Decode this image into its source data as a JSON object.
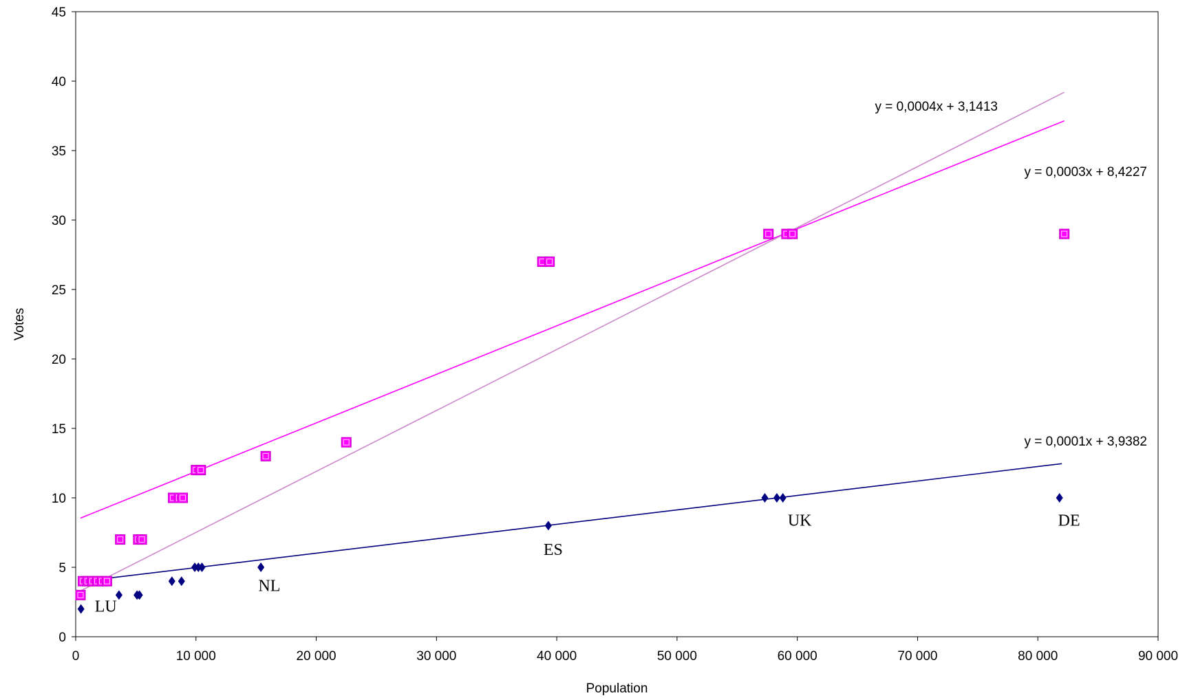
{
  "chart_data": {
    "type": "scatter",
    "xlabel": "Population",
    "ylabel": "Votes",
    "xlim": [
      0,
      90000
    ],
    "ylim": [
      0,
      45
    ],
    "x_ticks": [
      0,
      10000,
      20000,
      30000,
      40000,
      50000,
      60000,
      70000,
      80000,
      90000
    ],
    "x_tick_labels": [
      "0",
      "10 000",
      "20 000",
      "30 000",
      "40 000",
      "50 000",
      "60 000",
      "70 000",
      "80 000",
      "90 000"
    ],
    "y_ticks": [
      0,
      5,
      10,
      15,
      20,
      25,
      30,
      35,
      40,
      45
    ],
    "y_tick_labels": [
      "0",
      "5",
      "10",
      "15",
      "20",
      "25",
      "30",
      "35",
      "40",
      "45"
    ],
    "grid": false,
    "series": [
      {
        "marker": "diamond",
        "color": "#000080",
        "points": [
          {
            "x": 440,
            "y": 2
          },
          {
            "x": 700,
            "y": 4
          },
          {
            "x": 1400,
            "y": 4
          },
          {
            "x": 2000,
            "y": 4
          },
          {
            "x": 2400,
            "y": 4
          },
          {
            "x": 3600,
            "y": 3
          },
          {
            "x": 5100,
            "y": 3
          },
          {
            "x": 5300,
            "y": 3
          },
          {
            "x": 8000,
            "y": 4
          },
          {
            "x": 8800,
            "y": 4
          },
          {
            "x": 9900,
            "y": 5
          },
          {
            "x": 10200,
            "y": 5
          },
          {
            "x": 10500,
            "y": 5
          },
          {
            "x": 15400,
            "y": 5
          },
          {
            "x": 39300,
            "y": 8
          },
          {
            "x": 57300,
            "y": 10
          },
          {
            "x": 58300,
            "y": 10
          },
          {
            "x": 58800,
            "y": 10
          },
          {
            "x": 81800,
            "y": 10
          }
        ]
      },
      {
        "marker": "square",
        "color": "#ff00ff",
        "points": [
          {
            "x": 400,
            "y": 3
          },
          {
            "x": 600,
            "y": 4
          },
          {
            "x": 1000,
            "y": 4
          },
          {
            "x": 1400,
            "y": 4
          },
          {
            "x": 1800,
            "y": 4
          },
          {
            "x": 2200,
            "y": 4
          },
          {
            "x": 2600,
            "y": 4
          },
          {
            "x": 3700,
            "y": 7
          },
          {
            "x": 5200,
            "y": 7
          },
          {
            "x": 5500,
            "y": 7
          },
          {
            "x": 8100,
            "y": 10
          },
          {
            "x": 8600,
            "y": 10
          },
          {
            "x": 8900,
            "y": 10
          },
          {
            "x": 10000,
            "y": 12
          },
          {
            "x": 10400,
            "y": 12
          },
          {
            "x": 15800,
            "y": 13
          },
          {
            "x": 22500,
            "y": 14
          },
          {
            "x": 38800,
            "y": 27
          },
          {
            "x": 39400,
            "y": 27
          },
          {
            "x": 57600,
            "y": 29
          },
          {
            "x": 59100,
            "y": 29
          },
          {
            "x": 59600,
            "y": 29
          },
          {
            "x": 82200,
            "y": 29
          }
        ]
      }
    ],
    "trendlines": [
      {
        "color": "#000080",
        "x": [
          440,
          82000
        ],
        "y": [
          3.98,
          12.46
        ],
        "equation": "y = 0,0001x + 3,9382"
      },
      {
        "color": "#ff00ff",
        "x": [
          400,
          82200
        ],
        "y": [
          8.54,
          37.14
        ],
        "equation": "y = 0,0003x + 8,4227"
      },
      {
        "color": "#cc88cc",
        "x": [
          400,
          82200
        ],
        "y": [
          3.3,
          39.2
        ],
        "equation": "y = 0,0004x + 3,1413"
      }
    ],
    "annotations": [
      {
        "text": "LU",
        "x": 2500,
        "y": 1.8
      },
      {
        "text": "NL",
        "x": 16100,
        "y": 3.3
      },
      {
        "text": "ES",
        "x": 39700,
        "y": 5.9
      },
      {
        "text": "UK",
        "x": 60200,
        "y": 8.0
      },
      {
        "text": "DE",
        "x": 82600,
        "y": 8.0
      }
    ]
  }
}
